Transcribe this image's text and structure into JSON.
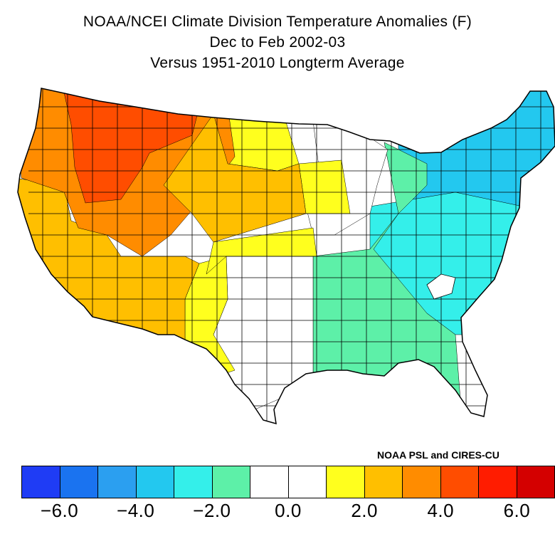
{
  "header": {
    "title_line1": "NOAA/NCEI Climate Division Temperature Anomalies (F)",
    "title_line2": "Dec to Feb 2002-03",
    "title_line3": "Versus 1951-2010 Longterm Average"
  },
  "credit": "NOAA PSL and CIRES-CU",
  "legend": {
    "colors": [
      "#1f3cf5",
      "#1a73f0",
      "#2b9ff0",
      "#23c8ef",
      "#34efea",
      "#5df0a8",
      "#ffffff",
      "#ffffff",
      "#ffff1e",
      "#ffbf00",
      "#ff8c00",
      "#ff4d00",
      "#ff1c00",
      "#d40000"
    ],
    "ticks": [
      "-6.0",
      "-4.0",
      "-2.0",
      "0.0",
      "2.0",
      "4.0",
      "6.0"
    ],
    "tick_values": [
      -6,
      -4,
      -2,
      0,
      2,
      4,
      6
    ],
    "range": [
      -7,
      7
    ]
  },
  "map": {
    "regions": [
      {
        "name": "Northern Rockies / Idaho",
        "anomaly_class": "4.0 to 5.0",
        "color": "#ff4d00"
      },
      {
        "name": "Great Basin / Pacific Northwest",
        "anomaly_class": "3.0 to 4.0",
        "color": "#ff8c00"
      },
      {
        "name": "California / Desert Southwest",
        "anomaly_class": "2.0 to 3.0",
        "color": "#ffbf00"
      },
      {
        "name": "Northern Plains / Colorado",
        "anomaly_class": "2.0 to 3.0",
        "color": "#ffbf00"
      },
      {
        "name": "West Texas / New Mexico / Central Plains",
        "anomaly_class": "1.0 to 2.0",
        "color": "#ffff1e"
      },
      {
        "name": "South-Central / Upper Midwest",
        "anomaly_class": "-1.0 to 1.0",
        "color": "#ffffff"
      },
      {
        "name": "Mississippi Valley / Gulf Coast",
        "anomaly_class": "-2.0 to -1.0",
        "color": "#5df0a8"
      },
      {
        "name": "Ohio Valley / Southeast",
        "anomaly_class": "-3.0 to -2.0",
        "color": "#34efea"
      },
      {
        "name": "Northeast / Mid-Atlantic",
        "anomaly_class": "-4.0 to -3.0",
        "color": "#23c8ef"
      }
    ]
  }
}
